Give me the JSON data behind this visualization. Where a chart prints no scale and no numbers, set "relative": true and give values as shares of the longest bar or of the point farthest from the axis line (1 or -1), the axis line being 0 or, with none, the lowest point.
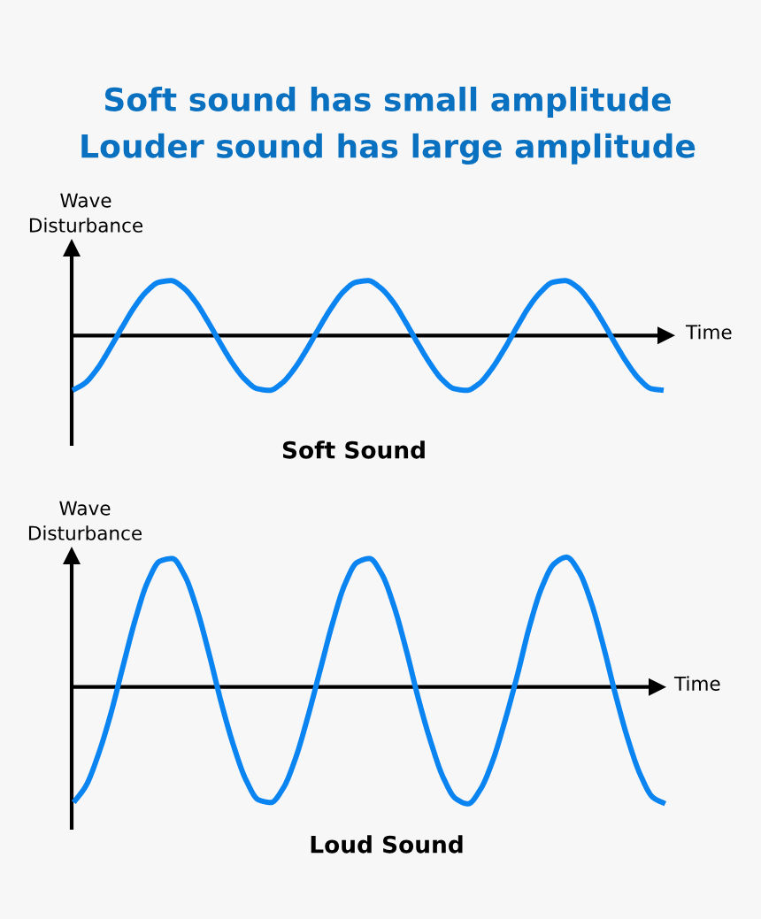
{
  "chart_data": [
    {
      "type": "line",
      "title": "Soft sound has small amplitude\nLouder sound has large amplitude",
      "xlabel": "Time",
      "ylabel": "Wave\nDisturbance",
      "annotations": [
        "Soft Sound"
      ],
      "relative": true,
      "categories": [
        null,
        null,
        null,
        null,
        null,
        null,
        null,
        null,
        null,
        null,
        null,
        null,
        null,
        null,
        null,
        null,
        null,
        null,
        null,
        null,
        null,
        null,
        null,
        null,
        null,
        null,
        null,
        null,
        null,
        null,
        null,
        null,
        null,
        null,
        null,
        null,
        null,
        null,
        null,
        null,
        null,
        null,
        null,
        null,
        null,
        null,
        null,
        null,
        null
      ],
      "series": [
        {
          "color": "#0a84f0",
          "values": [
            -1.0,
            -0.87,
            -0.61,
            -0.25,
            0.14,
            0.51,
            0.8,
            0.97,
            1.0,
            0.87,
            0.61,
            0.25,
            -0.14,
            -0.51,
            -0.8,
            -0.97,
            -1.0,
            -0.87,
            -0.61,
            -0.26,
            0.13,
            0.5,
            0.8,
            0.97,
            1.0,
            0.87,
            0.62,
            0.26,
            -0.13,
            -0.5,
            -0.8,
            -0.97,
            -1.0,
            -0.88,
            -0.62,
            -0.27,
            0.12,
            0.5,
            0.79,
            0.97,
            1.0,
            0.88,
            0.62,
            0.27,
            -0.12,
            -0.49,
            -0.79,
            -0.97,
            -1.0
          ]
        }
      ]
    },
    {
      "type": "line",
      "xlabel": "Time",
      "ylabel": "Wave\nDisturbance",
      "annotations": [
        "Loud Sound"
      ],
      "relative": true,
      "categories": [
        null,
        null,
        null,
        null,
        null,
        null,
        null,
        null,
        null,
        null,
        null,
        null,
        null,
        null,
        null,
        null,
        null,
        null,
        null,
        null,
        null,
        null,
        null,
        null,
        null,
        null,
        null,
        null,
        null,
        null,
        null,
        null,
        null,
        null,
        null,
        null,
        null,
        null,
        null,
        null,
        null,
        null,
        null,
        null,
        null,
        null,
        null,
        null,
        null
      ],
      "series": [
        {
          "color": "#0a84f0",
          "values": [
            -0.89,
            -0.76,
            -0.52,
            -0.21,
            0.16,
            0.52,
            0.81,
            0.97,
            0.99,
            0.86,
            0.6,
            0.25,
            -0.13,
            -0.46,
            -0.72,
            -0.87,
            -0.89,
            -0.78,
            -0.55,
            -0.23,
            0.13,
            0.49,
            0.79,
            0.96,
            0.99,
            0.87,
            0.62,
            0.28,
            -0.1,
            -0.43,
            -0.7,
            -0.86,
            -0.9,
            -0.79,
            -0.57,
            -0.26,
            0.09,
            0.47,
            0.77,
            0.95,
            1.0,
            0.89,
            0.65,
            0.31,
            -0.07,
            -0.41,
            -0.68,
            -0.85,
            -0.9
          ]
        }
      ]
    }
  ]
}
